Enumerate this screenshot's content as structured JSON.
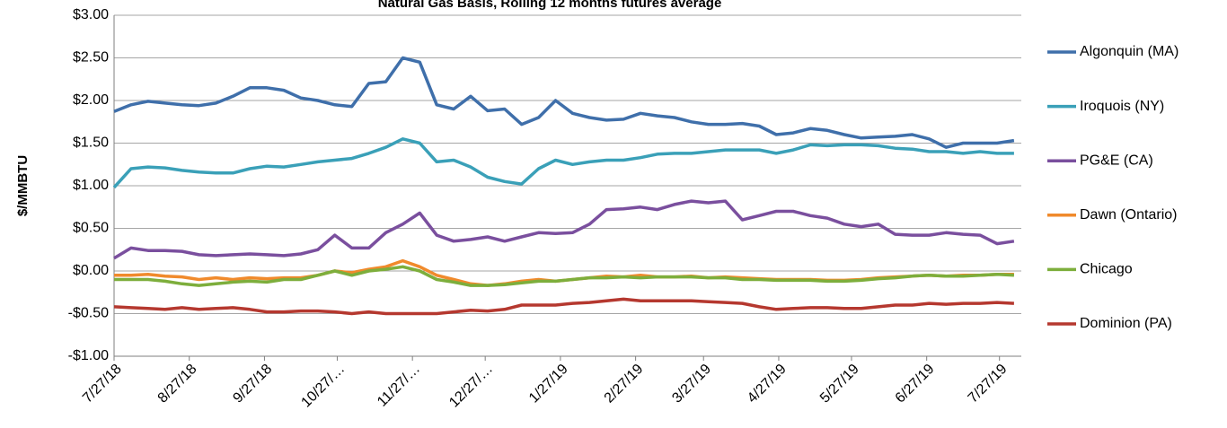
{
  "chart_data": {
    "type": "line",
    "title": "Natural Gas Basis, Rolling 12 months futures average",
    "y_label": "$/MMBTU",
    "x": [
      "7/27/18",
      "8/3/18",
      "8/10/18",
      "8/17/18",
      "8/24/18",
      "8/31/18",
      "9/7/18",
      "9/14/18",
      "9/21/18",
      "9/28/18",
      "10/5/18",
      "10/12/18",
      "10/19/18",
      "10/26/18",
      "11/2/18",
      "11/9/18",
      "11/16/18",
      "11/23/18",
      "11/30/18",
      "12/7/18",
      "12/14/18",
      "12/21/18",
      "12/28/18",
      "1/4/19",
      "1/11/19",
      "1/18/19",
      "1/25/19",
      "2/1/19",
      "2/8/19",
      "2/15/19",
      "2/22/19",
      "3/1/19",
      "3/8/19",
      "3/15/19",
      "3/22/19",
      "3/29/19",
      "4/5/19",
      "4/12/19",
      "4/19/19",
      "4/26/19",
      "5/3/19",
      "5/10/19",
      "5/17/19",
      "5/24/19",
      "5/31/19",
      "6/7/19",
      "6/14/19",
      "6/21/19",
      "6/28/19",
      "7/5/19",
      "7/12/19",
      "7/19/19",
      "7/26/19",
      "8/2/19"
    ],
    "series": [
      {
        "name": "Algonquin (MA)",
        "color": "#3f6faa",
        "values": [
          1.87,
          1.95,
          1.99,
          1.97,
          1.95,
          1.94,
          1.97,
          2.05,
          2.15,
          2.15,
          2.12,
          2.03,
          2.0,
          1.95,
          1.93,
          2.2,
          2.22,
          2.5,
          2.45,
          1.95,
          1.9,
          2.05,
          1.88,
          1.9,
          1.72,
          1.8,
          2.0,
          1.85,
          1.8,
          1.77,
          1.78,
          1.85,
          1.82,
          1.8,
          1.75,
          1.72,
          1.72,
          1.73,
          1.7,
          1.6,
          1.62,
          1.67,
          1.65,
          1.6,
          1.56,
          1.57,
          1.58,
          1.6,
          1.55,
          1.45,
          1.5,
          1.5,
          1.5,
          1.53
        ]
      },
      {
        "name": "Iroquois (NY)",
        "color": "#3aa0b8",
        "values": [
          0.98,
          1.2,
          1.22,
          1.21,
          1.18,
          1.16,
          1.15,
          1.15,
          1.2,
          1.23,
          1.22,
          1.25,
          1.28,
          1.3,
          1.32,
          1.38,
          1.45,
          1.55,
          1.5,
          1.28,
          1.3,
          1.22,
          1.1,
          1.05,
          1.02,
          1.2,
          1.3,
          1.25,
          1.28,
          1.3,
          1.3,
          1.33,
          1.37,
          1.38,
          1.38,
          1.4,
          1.42,
          1.42,
          1.42,
          1.38,
          1.42,
          1.48,
          1.47,
          1.48,
          1.48,
          1.47,
          1.44,
          1.43,
          1.4,
          1.4,
          1.38,
          1.4,
          1.38,
          1.38
        ]
      },
      {
        "name": "PG&E (CA)",
        "color": "#7a4f9e",
        "values": [
          0.15,
          0.27,
          0.24,
          0.24,
          0.23,
          0.19,
          0.18,
          0.19,
          0.2,
          0.19,
          0.18,
          0.2,
          0.25,
          0.42,
          0.27,
          0.27,
          0.45,
          0.55,
          0.68,
          0.42,
          0.35,
          0.37,
          0.4,
          0.35,
          0.4,
          0.45,
          0.44,
          0.45,
          0.55,
          0.72,
          0.73,
          0.75,
          0.72,
          0.78,
          0.82,
          0.8,
          0.82,
          0.6,
          0.65,
          0.7,
          0.7,
          0.65,
          0.62,
          0.55,
          0.52,
          0.55,
          0.43,
          0.42,
          0.42,
          0.45,
          0.43,
          0.42,
          0.32,
          0.35
        ]
      },
      {
        "name": "Dawn (Ontario)",
        "color": "#f08a2c",
        "values": [
          -0.05,
          -0.05,
          -0.04,
          -0.06,
          -0.07,
          -0.1,
          -0.08,
          -0.1,
          -0.08,
          -0.09,
          -0.08,
          -0.08,
          -0.05,
          0.0,
          -0.02,
          0.02,
          0.05,
          0.12,
          0.05,
          -0.05,
          -0.1,
          -0.15,
          -0.17,
          -0.15,
          -0.12,
          -0.1,
          -0.12,
          -0.1,
          -0.08,
          -0.06,
          -0.07,
          -0.05,
          -0.07,
          -0.07,
          -0.06,
          -0.08,
          -0.07,
          -0.08,
          -0.09,
          -0.1,
          -0.1,
          -0.1,
          -0.11,
          -0.11,
          -0.1,
          -0.08,
          -0.07,
          -0.06,
          -0.05,
          -0.06,
          -0.05,
          -0.05,
          -0.04,
          -0.04
        ]
      },
      {
        "name": "Chicago",
        "color": "#7dae3c",
        "values": [
          -0.1,
          -0.1,
          -0.1,
          -0.12,
          -0.15,
          -0.17,
          -0.15,
          -0.13,
          -0.12,
          -0.13,
          -0.1,
          -0.1,
          -0.05,
          0.0,
          -0.05,
          0.0,
          0.02,
          0.05,
          0.0,
          -0.1,
          -0.13,
          -0.17,
          -0.17,
          -0.16,
          -0.14,
          -0.12,
          -0.12,
          -0.1,
          -0.08,
          -0.08,
          -0.07,
          -0.08,
          -0.07,
          -0.07,
          -0.07,
          -0.08,
          -0.08,
          -0.1,
          -0.1,
          -0.11,
          -0.11,
          -0.11,
          -0.12,
          -0.12,
          -0.11,
          -0.09,
          -0.08,
          -0.06,
          -0.05,
          -0.06,
          -0.06,
          -0.05,
          -0.04,
          -0.05
        ]
      },
      {
        "name": "Dominion (PA)",
        "color": "#b5382f",
        "values": [
          -0.42,
          -0.43,
          -0.44,
          -0.45,
          -0.43,
          -0.45,
          -0.44,
          -0.43,
          -0.45,
          -0.48,
          -0.48,
          -0.47,
          -0.47,
          -0.48,
          -0.5,
          -0.48,
          -0.5,
          -0.5,
          -0.5,
          -0.5,
          -0.48,
          -0.46,
          -0.47,
          -0.45,
          -0.4,
          -0.4,
          -0.4,
          -0.38,
          -0.37,
          -0.35,
          -0.33,
          -0.35,
          -0.35,
          -0.35,
          -0.35,
          -0.36,
          -0.37,
          -0.38,
          -0.42,
          -0.45,
          -0.44,
          -0.43,
          -0.43,
          -0.44,
          -0.44,
          -0.42,
          -0.4,
          -0.4,
          -0.38,
          -0.39,
          -0.38,
          -0.38,
          -0.37,
          -0.38
        ]
      }
    ],
    "xlim": [
      "7/27/18",
      "8/5/19"
    ],
    "xticks": [
      "7/27/18",
      "8/27/18",
      "9/27/18",
      {
        "value": "10/27/18",
        "label": "10/27/…"
      },
      {
        "value": "11/27/18",
        "label": "11/27/…"
      },
      {
        "value": "12/27/18",
        "label": "12/27/…"
      },
      "1/27/19",
      "2/27/19",
      "3/27/19",
      "4/27/19",
      "5/27/19",
      "6/27/19",
      "7/27/19"
    ],
    "ylim": [
      -1,
      3
    ],
    "yticks": [
      {
        "value": -1,
        "label": "-$1.00"
      },
      {
        "value": -0.5,
        "label": "-$0.50"
      },
      {
        "value": 0,
        "label": "$0.00"
      },
      {
        "value": 0.5,
        "label": "$0.50"
      },
      {
        "value": 1,
        "label": "$1.00"
      },
      {
        "value": 1.5,
        "label": "$1.50"
      },
      {
        "value": 2,
        "label": "$2.00"
      },
      {
        "value": 2.5,
        "label": "$2.50"
      },
      {
        "value": 3,
        "label": "$3.00"
      }
    ],
    "grid": true,
    "legend": "right"
  }
}
